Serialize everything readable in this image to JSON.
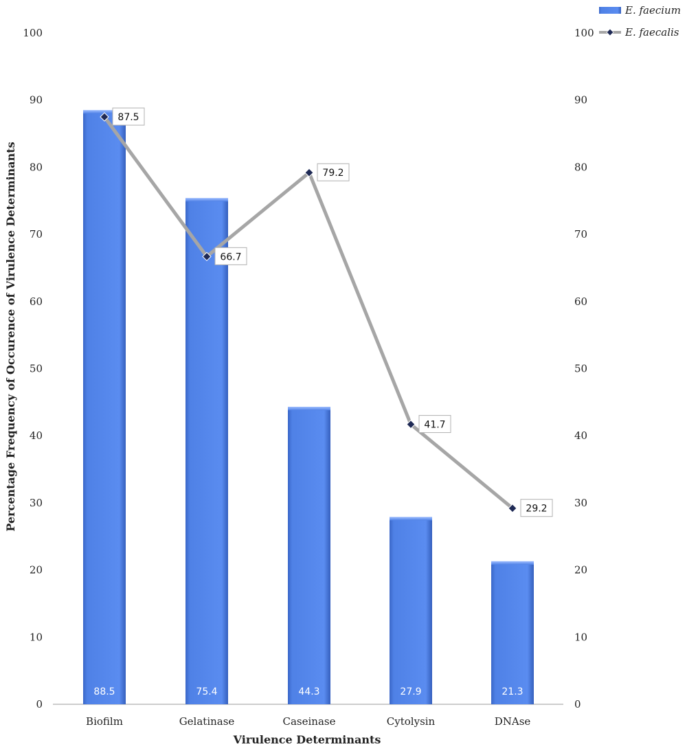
{
  "chart_data": {
    "type": "bar",
    "categories": [
      "Biofilm",
      "Gelatinase",
      "Caseinase",
      "Cytolysin",
      "DNAse"
    ],
    "series": [
      {
        "name": "E. faecium",
        "type": "bar",
        "values": [
          88.5,
          75.4,
          44.3,
          27.9,
          21.3
        ],
        "color": "#4f81e6"
      },
      {
        "name": "E. faecalis",
        "type": "line",
        "values": [
          87.5,
          66.7,
          79.2,
          41.7,
          29.2
        ],
        "color": "#a6a6a6"
      }
    ],
    "title": "",
    "xlabel": "Virulence Determinants",
    "ylabel": "Percentage Frequency of Occurence of Virulence Determinants",
    "ylim": [
      0,
      100
    ],
    "y2lim": [
      0,
      100
    ],
    "yticks": [
      0,
      10,
      20,
      30,
      40,
      50,
      60,
      70,
      80,
      90,
      100
    ],
    "grid": false,
    "legend": "top-right",
    "bar_value_labels": [
      "88.5",
      "75.4",
      "44.3",
      "27.9",
      "21.3"
    ],
    "line_value_labels": [
      "87.5",
      "66.7",
      "79.2",
      "41.7",
      "29.2"
    ]
  }
}
